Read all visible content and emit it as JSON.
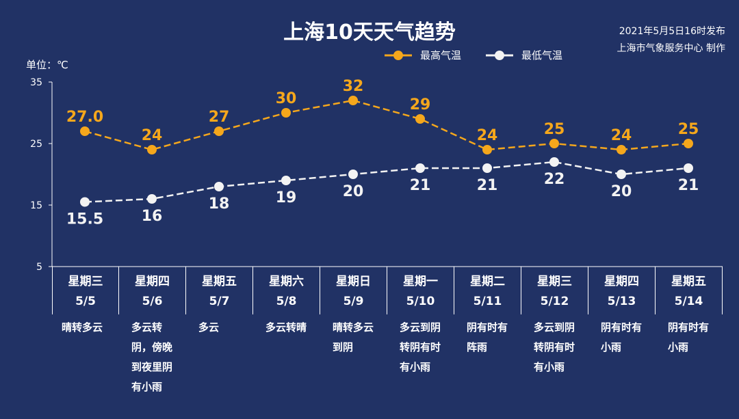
{
  "header": {
    "title": "上海10天天气趋势",
    "issued_line1": "2021年5月5日16时发布",
    "issued_line2": "上海市气象服务中心 制作",
    "unit_label": "单位：℃"
  },
  "colors": {
    "background": "#213265",
    "high": "#f5a71c",
    "low": "#f3f3f3",
    "axis": "#ffffff"
  },
  "chart_data": {
    "type": "line",
    "ylim": [
      5,
      35
    ],
    "yticks": [
      "5",
      "15",
      "25",
      "35"
    ],
    "categories": [
      "5/5",
      "5/6",
      "5/7",
      "5/8",
      "5/9",
      "5/10",
      "5/11",
      "5/12",
      "5/13",
      "5/14"
    ],
    "series": [
      {
        "name": "最高气温",
        "values": [
          27.0,
          24,
          27,
          30,
          32,
          29,
          24,
          25,
          24,
          25
        ],
        "labels": [
          "27.0",
          "24",
          "27",
          "30",
          "32",
          "29",
          "24",
          "25",
          "24",
          "25"
        ]
      },
      {
        "name": "最低气温",
        "values": [
          15.5,
          16,
          18,
          19,
          20,
          21,
          21,
          22,
          20,
          21
        ],
        "labels": [
          "15.5",
          "16",
          "18",
          "19",
          "20",
          "21",
          "21",
          "22",
          "20",
          "21"
        ]
      }
    ]
  },
  "days": [
    {
      "weekday": "星期三",
      "date": "5/5",
      "condition": "晴转多云"
    },
    {
      "weekday": "星期四",
      "date": "5/6",
      "condition": "多云转阴，傍晚到夜里阴有小雨"
    },
    {
      "weekday": "星期五",
      "date": "5/7",
      "condition": "多云"
    },
    {
      "weekday": "星期六",
      "date": "5/8",
      "condition": "多云转晴"
    },
    {
      "weekday": "星期日",
      "date": "5/9",
      "condition": "晴转多云到阴"
    },
    {
      "weekday": "星期一",
      "date": "5/10",
      "condition": "多云到阴转阴有时有小雨"
    },
    {
      "weekday": "星期二",
      "date": "5/11",
      "condition": "阴有时有阵雨"
    },
    {
      "weekday": "星期三",
      "date": "5/12",
      "condition": "多云到阴转阴有时有小雨"
    },
    {
      "weekday": "星期四",
      "date": "5/13",
      "condition": "阴有时有小雨"
    },
    {
      "weekday": "星期五",
      "date": "5/14",
      "condition": "阴有时有小雨"
    }
  ]
}
